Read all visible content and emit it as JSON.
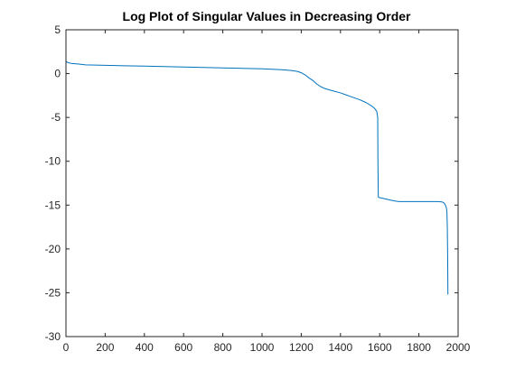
{
  "chart_data": {
    "type": "line",
    "title": "Log Plot of Singular Values in Decreasing Order",
    "xlabel": "",
    "ylabel": "",
    "xlim": [
      0,
      2000
    ],
    "ylim": [
      -30,
      5
    ],
    "xticks": [
      0,
      200,
      400,
      600,
      800,
      1000,
      1200,
      1400,
      1600,
      1800,
      2000
    ],
    "yticks": [
      5,
      0,
      -5,
      -10,
      -15,
      -20,
      -25,
      -30
    ],
    "grid": false,
    "legend": "none",
    "series": [
      {
        "color": "#0072BD",
        "x": [
          1,
          10,
          30,
          60,
          100,
          200,
          300,
          400,
          500,
          600,
          700,
          800,
          900,
          1000,
          1050,
          1100,
          1150,
          1180,
          1200,
          1220,
          1240,
          1260,
          1280,
          1300,
          1320,
          1350,
          1400,
          1450,
          1500,
          1530,
          1560,
          1575,
          1585,
          1590,
          1591,
          1593,
          1600,
          1620,
          1650,
          1680,
          1700,
          1750,
          1800,
          1850,
          1900,
          1920,
          1930,
          1935,
          1940,
          1943,
          1945,
          1947,
          1948
        ],
        "y": [
          1.4,
          1.25,
          1.15,
          1.1,
          1.0,
          0.95,
          0.9,
          0.85,
          0.8,
          0.75,
          0.7,
          0.65,
          0.6,
          0.55,
          0.5,
          0.45,
          0.35,
          0.25,
          0.1,
          -0.15,
          -0.5,
          -0.8,
          -1.2,
          -1.5,
          -1.7,
          -1.9,
          -2.2,
          -2.6,
          -3.0,
          -3.3,
          -3.7,
          -4.0,
          -4.3,
          -5.0,
          -10.0,
          -14.1,
          -14.15,
          -14.25,
          -14.4,
          -14.55,
          -14.6,
          -14.6,
          -14.6,
          -14.6,
          -14.6,
          -14.65,
          -14.8,
          -15.0,
          -15.3,
          -15.8,
          -17.5,
          -21.5,
          -25.2
        ]
      }
    ]
  }
}
